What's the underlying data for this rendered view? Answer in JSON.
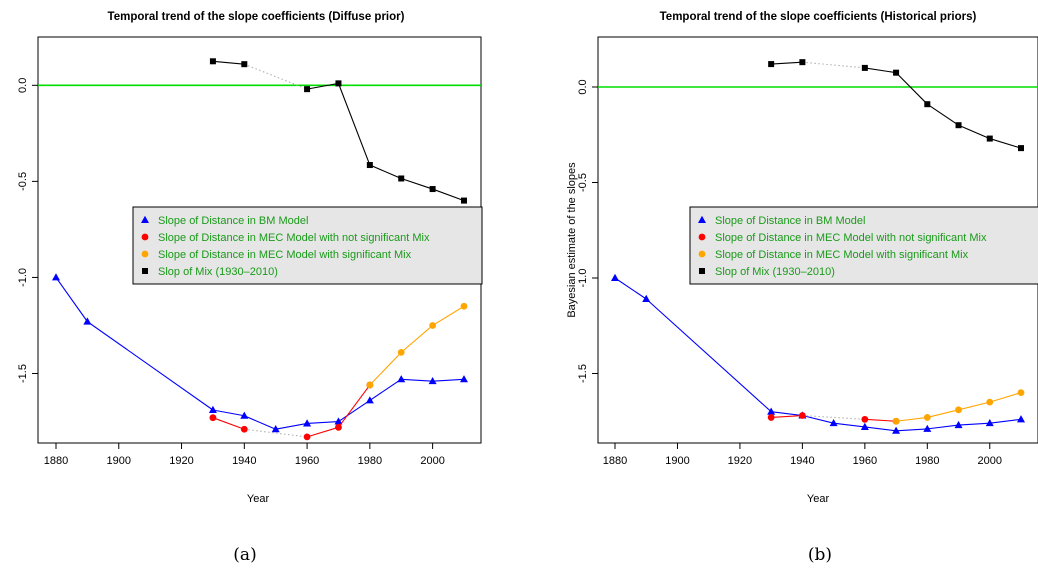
{
  "chart_data": [
    {
      "type": "line",
      "title": "Temporal trend of the slope coefficients (Diffuse prior)",
      "xlabel": "Year",
      "ylabel": "",
      "caption": "(a)",
      "xlim": [
        1875,
        2015
      ],
      "ylim": [
        -1.9,
        0.2
      ],
      "xticks": [
        1880,
        1900,
        1920,
        1940,
        1960,
        1980,
        2000
      ],
      "yticks": [
        0.0,
        -0.5,
        -1.0,
        -1.5
      ],
      "ytick_labels": [
        "0.0",
        "-0.5",
        "-1.0",
        "-1.5"
      ],
      "reference_line": {
        "y": 0.0,
        "color": "#00dd00"
      },
      "legend": {
        "placement": "center-right",
        "entries": [
          {
            "label": "Slope of Distance in BM Model",
            "color": "#0000ff",
            "marker": "triangle"
          },
          {
            "label": "Slope of Distance in MEC Model  with not significant Mix",
            "color": "#ff0000",
            "marker": "circle"
          },
          {
            "label": "Slope of Distance in MEC Model  with significant Mix",
            "color": "#ffa500",
            "marker": "circle"
          },
          {
            "label": "Slop of Mix (1930–2010)",
            "color": "#000000",
            "marker": "square"
          }
        ]
      },
      "series": [
        {
          "color": "#0000ff",
          "marker": "triangle",
          "x": [
            1880,
            1890,
            1930,
            1940,
            1950,
            1960,
            1970,
            1980,
            1990,
            2000,
            2010
          ],
          "y": [
            -1.0,
            -1.23,
            -1.69,
            -1.72,
            -1.79,
            -1.76,
            -1.75,
            -1.64,
            -1.53,
            -1.54,
            -1.53
          ]
        },
        {
          "color": "#ff0000",
          "marker": "circle",
          "x": [
            1930,
            1940,
            1960,
            1970,
            1980
          ],
          "y": [
            -1.73,
            -1.79,
            -1.83,
            -1.78,
            -1.56
          ],
          "dotted_gaps": [
            [
              1940,
              1960
            ]
          ]
        },
        {
          "color": "#ffa500",
          "marker": "circle",
          "x": [
            1980,
            1990,
            2000,
            2010
          ],
          "y": [
            -1.56,
            -1.39,
            -1.25,
            -1.15
          ]
        },
        {
          "color": "#000000",
          "marker": "square",
          "x": [
            1930,
            1940,
            1960,
            1970,
            1980,
            1990,
            2000,
            2010
          ],
          "y": [
            0.125,
            0.11,
            -0.02,
            0.01,
            -0.415,
            -0.485,
            -0.54,
            -0.6
          ],
          "dotted_gaps": [
            [
              1940,
              1960
            ]
          ]
        }
      ]
    },
    {
      "type": "line",
      "title": "Temporal trend of the slope coefficients (Historical priors)",
      "xlabel": "Year",
      "ylabel": "Bayesian estimate of the slopes",
      "caption": "(b)",
      "xlim": [
        1875,
        2015
      ],
      "ylim": [
        -1.9,
        0.2
      ],
      "xticks": [
        1880,
        1900,
        1920,
        1940,
        1960,
        1980,
        2000
      ],
      "yticks": [
        0.0,
        -0.5,
        -1.0,
        -1.5
      ],
      "ytick_labels": [
        "0.0",
        "-0.5",
        "-1.0",
        "-1.5"
      ],
      "reference_line": {
        "y": 0.0,
        "color": "#00dd00"
      },
      "legend": {
        "placement": "center-right",
        "entries": [
          {
            "label": "Slope of Distance in BM Model",
            "color": "#0000ff",
            "marker": "triangle"
          },
          {
            "label": "Slope of Distance in MEC Model  with not significant Mix",
            "color": "#ff0000",
            "marker": "circle"
          },
          {
            "label": "Slope of Distance in MEC Model  with significant Mix",
            "color": "#ffa500",
            "marker": "circle"
          },
          {
            "label": "Slop of Mix (1930–2010)",
            "color": "#000000",
            "marker": "square"
          }
        ]
      },
      "series": [
        {
          "color": "#0000ff",
          "marker": "triangle",
          "x": [
            1880,
            1890,
            1930,
            1940,
            1950,
            1960,
            1970,
            1980,
            1990,
            2000,
            2010
          ],
          "y": [
            -1.0,
            -1.11,
            -1.7,
            -1.72,
            -1.76,
            -1.78,
            -1.8,
            -1.79,
            -1.77,
            -1.76,
            -1.74
          ]
        },
        {
          "color": "#ff0000",
          "marker": "circle",
          "x": [
            1930,
            1940,
            1960,
            1970
          ],
          "y": [
            -1.73,
            -1.72,
            -1.74,
            -1.75
          ],
          "dotted_gaps": [
            [
              1940,
              1960
            ]
          ]
        },
        {
          "color": "#ffa500",
          "marker": "circle",
          "x": [
            1970,
            1980,
            1990,
            2000,
            2010
          ],
          "y": [
            -1.75,
            -1.73,
            -1.69,
            -1.65,
            -1.6
          ]
        },
        {
          "color": "#000000",
          "marker": "square",
          "x": [
            1930,
            1940,
            1960,
            1970,
            1980,
            1990,
            2000,
            2010
          ],
          "y": [
            0.12,
            0.13,
            0.1,
            0.075,
            -0.09,
            -0.2,
            -0.27,
            -0.32
          ],
          "dotted_gaps": [
            [
              1940,
              1960
            ]
          ]
        }
      ]
    }
  ]
}
